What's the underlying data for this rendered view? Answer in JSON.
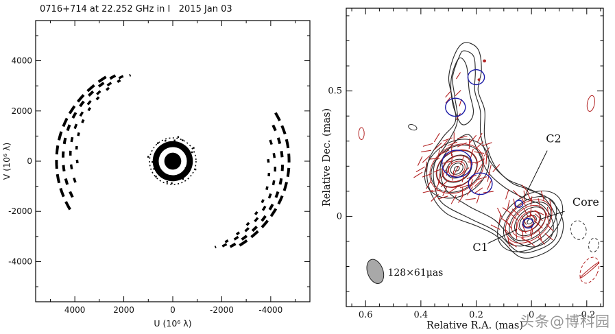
{
  "figure": {
    "background": "#ffffff",
    "watermark": {
      "text": "头条@博科园",
      "color": "#8d8d8d"
    }
  },
  "chart_data": [
    {
      "type": "scatter",
      "id": "uv_coverage",
      "title": "0716+714 at 22.252 GHz in I   2015 Jan 03",
      "xlabel": "U (10⁶ λ)",
      "ylabel": "V (10⁶ λ)",
      "xlim": [
        5600,
        -5600
      ],
      "ylim": [
        -5600,
        5600
      ],
      "xticks": [
        4000,
        2000,
        0,
        -2000,
        -4000
      ],
      "yticks": [
        -4000,
        -2000,
        0,
        2000,
        4000
      ],
      "minor_step": 1000,
      "point_color": "#000000",
      "center_blob": {
        "outer_r": 820,
        "ring_r": 460,
        "ring_w": 230,
        "core_r": 300,
        "halo_r": 950
      },
      "speckles": {
        "count": 30,
        "r_min": 560,
        "r_max": 1020
      },
      "arcs": [
        {
          "a": 4750,
          "b": 4100,
          "cy": 0,
          "t0": -28,
          "t1": 57,
          "dash": "13,8",
          "w": 4
        },
        {
          "a": 4480,
          "b": 3850,
          "cy": 130,
          "t0": -24,
          "t1": 60,
          "dash": "9,11",
          "w": 4
        },
        {
          "a": 4180,
          "b": 3580,
          "cy": 260,
          "t0": -18,
          "t1": 62,
          "dash": "7,13",
          "w": 3.5
        },
        {
          "a": 3930,
          "b": 3380,
          "cy": 390,
          "t0": -8,
          "t1": 64,
          "dash": "5,15",
          "w": 3.5
        }
      ],
      "symmetric": true
    },
    {
      "type": "contour-map",
      "id": "vlbi_map",
      "xlabel": "Relative R.A. (mas)",
      "ylabel": "Relative Dec. (mas)",
      "xlim": [
        0.67,
        -0.26
      ],
      "ylim": [
        -0.36,
        0.83
      ],
      "xticks": [
        0.6,
        0.4,
        0.2,
        0,
        -0.2
      ],
      "yticks": [
        0,
        0.5
      ],
      "minor_x": 0.05,
      "minor_y": 0.1,
      "contour_color": "#2b2b2b",
      "pol_color": "#b22222",
      "model_color": "#1a1aa6",
      "beam": {
        "x": 0.565,
        "y": -0.22,
        "rx": 0.028,
        "ry": 0.05,
        "rot": -20,
        "fill": "#a8a8a8",
        "label": "128×61μas",
        "label_x": 0.52,
        "label_y": -0.237
      },
      "envelope_outer": [
        [
          -0.042,
          -0.149
        ],
        [
          0.04,
          -0.163
        ],
        [
          0.122,
          -0.082
        ],
        [
          0.193,
          -0.041
        ],
        [
          0.311,
          0.014
        ],
        [
          0.369,
          0.109
        ],
        [
          0.374,
          0.217
        ],
        [
          0.322,
          0.313
        ],
        [
          0.275,
          0.38
        ],
        [
          0.287,
          0.476
        ],
        [
          0.299,
          0.557
        ],
        [
          0.275,
          0.652
        ],
        [
          0.24,
          0.693
        ],
        [
          0.193,
          0.666
        ],
        [
          0.181,
          0.584
        ],
        [
          0.193,
          0.503
        ],
        [
          0.169,
          0.421
        ],
        [
          0.169,
          0.313
        ],
        [
          0.134,
          0.204
        ],
        [
          0.075,
          0.136
        ],
        [
          0.016,
          0.109
        ],
        [
          -0.066,
          0.068
        ],
        [
          -0.113,
          -0.014
        ],
        [
          -0.101,
          -0.095
        ]
      ],
      "envelope_mid": [
        [
          -0.02,
          -0.135
        ],
        [
          0.05,
          -0.14
        ],
        [
          0.13,
          -0.06
        ],
        [
          0.22,
          -0.01
        ],
        [
          0.32,
          0.05
        ],
        [
          0.35,
          0.12
        ],
        [
          0.35,
          0.21
        ],
        [
          0.3,
          0.3
        ],
        [
          0.268,
          0.38
        ],
        [
          0.278,
          0.48
        ],
        [
          0.285,
          0.555
        ],
        [
          0.262,
          0.635
        ],
        [
          0.245,
          0.66
        ],
        [
          0.21,
          0.64
        ],
        [
          0.203,
          0.575
        ],
        [
          0.205,
          0.5
        ],
        [
          0.185,
          0.42
        ],
        [
          0.183,
          0.32
        ],
        [
          0.15,
          0.22
        ],
        [
          0.09,
          0.15
        ],
        [
          0.03,
          0.12
        ],
        [
          -0.045,
          0.075
        ],
        [
          -0.09,
          -0.01
        ],
        [
          -0.085,
          -0.09
        ]
      ],
      "envelope_inner": [
        [
          -0.007,
          -0.122
        ],
        [
          0.064,
          -0.095
        ],
        [
          0.134,
          -0.014
        ],
        [
          0.228,
          0.041
        ],
        [
          0.311,
          0.109
        ],
        [
          0.329,
          0.204
        ],
        [
          0.287,
          0.285
        ],
        [
          0.228,
          0.326
        ],
        [
          0.193,
          0.258
        ],
        [
          0.158,
          0.177
        ],
        [
          0.099,
          0.117
        ],
        [
          0.028,
          0.073
        ],
        [
          -0.042,
          0.041
        ],
        [
          -0.078,
          -0.027
        ],
        [
          -0.066,
          -0.09
        ]
      ],
      "jet_ridge": [
        [
          0.255,
          0.37
        ],
        [
          0.285,
          0.45
        ],
        [
          0.29,
          0.55
        ],
        [
          0.262,
          0.63
        ],
        [
          0.235,
          0.6
        ],
        [
          0.225,
          0.5
        ],
        [
          0.21,
          0.42
        ],
        [
          0.224,
          0.378
        ]
      ],
      "peaks": [
        {
          "x": 0.27,
          "y": 0.19,
          "levels": [
            0.125,
            0.1,
            0.078,
            0.058,
            0.04,
            0.024,
            0.01
          ],
          "ratio": 0.85,
          "rot": -35
        },
        {
          "x": 0.005,
          "y": -0.02,
          "levels": [
            0.135,
            0.11,
            0.086,
            0.064,
            0.044,
            0.026,
            0.012
          ],
          "ratio": 0.72,
          "rot": -40
        }
      ],
      "red_rings": [
        {
          "x": 0.27,
          "y": 0.19,
          "levels": [
            0.105,
            0.08,
            0.055,
            0.032
          ],
          "ratio": 0.85,
          "rot": -35
        },
        {
          "x": 0.01,
          "y": -0.02,
          "levels": [
            0.095,
            0.07,
            0.045,
            0.025
          ],
          "ratio": 0.75,
          "rot": -40
        }
      ],
      "pol_regions": [
        {
          "cx": 0.27,
          "cy": 0.19,
          "rx": 0.145,
          "ry": 0.155,
          "step": 0.031,
          "len": 0.037,
          "base_angle": -40,
          "spread": 50
        },
        {
          "cx": 0.02,
          "cy": -0.01,
          "rx": 0.115,
          "ry": 0.125,
          "step": 0.031,
          "len": 0.037,
          "base_angle": 65,
          "spread": 45
        },
        {
          "cx": 0.26,
          "cy": 0.47,
          "rx": 0.055,
          "ry": 0.12,
          "step": 0.05,
          "len": 0.028,
          "base_angle": -60,
          "spread": 25
        }
      ],
      "model_circles": [
        {
          "x": 0.2,
          "y": 0.555,
          "r": 0.03
        },
        {
          "x": 0.275,
          "y": 0.435,
          "r": 0.036
        },
        {
          "x": 0.27,
          "y": 0.21,
          "r": 0.054
        },
        {
          "x": 0.185,
          "y": 0.13,
          "r": 0.043
        },
        {
          "x": 0.045,
          "y": 0.05,
          "r": 0.014
        },
        {
          "x": 0.012,
          "y": -0.028,
          "r": 0.019
        }
      ],
      "stray_features": [
        {
          "x": -0.21,
          "y": -0.215,
          "rx": 0.03,
          "ry": 0.055,
          "rot": 25,
          "color": "red",
          "dash": true
        },
        {
          "x": -0.21,
          "y": -0.215,
          "rx": 0.045,
          "ry": 0.004,
          "rot": -40,
          "color": "red",
          "dash": false
        },
        {
          "x": -0.215,
          "y": 0.45,
          "rx": 0.013,
          "ry": 0.032,
          "rot": 10,
          "color": "red",
          "dash": false
        },
        {
          "x": 0.615,
          "y": 0.33,
          "rx": 0.01,
          "ry": 0.024,
          "rot": 0,
          "color": "red",
          "dash": false
        },
        {
          "x": 0.43,
          "y": 0.355,
          "rx": 0.016,
          "ry": 0.01,
          "rot": 20,
          "color": "dark",
          "dash": false
        },
        {
          "x": -0.17,
          "y": -0.055,
          "rx": 0.028,
          "ry": 0.038,
          "rot": -15,
          "color": "dark",
          "dash": true
        },
        {
          "x": -0.225,
          "y": -0.115,
          "rx": 0.018,
          "ry": 0.028,
          "rot": 10,
          "color": "dark",
          "dash": true
        },
        {
          "x": 0.17,
          "y": 0.62,
          "rx": 0.006,
          "ry": 0.006,
          "rot": 0,
          "color": "red",
          "dash": false
        },
        {
          "x": 0.19,
          "y": 0.545,
          "rx": 0.005,
          "ry": 0.005,
          "rot": 0,
          "color": "red",
          "dash": false
        }
      ],
      "annotations": [
        {
          "label": "C2",
          "anchor": "middle",
          "lx": -0.08,
          "ly": 0.295,
          "x1": -0.057,
          "y1": 0.262,
          "x2": 0.028,
          "y2": 0.072
        },
        {
          "label": "Core",
          "anchor": "start",
          "lx": -0.148,
          "ly": 0.042,
          "x1": -0.12,
          "y1": 0.02,
          "x2": -0.03,
          "y2": -0.012
        },
        {
          "label": "C1",
          "anchor": "middle",
          "lx": 0.185,
          "ly": -0.138,
          "x1": 0.158,
          "y1": -0.108,
          "x2": 0.052,
          "y2": -0.052
        }
      ]
    }
  ]
}
